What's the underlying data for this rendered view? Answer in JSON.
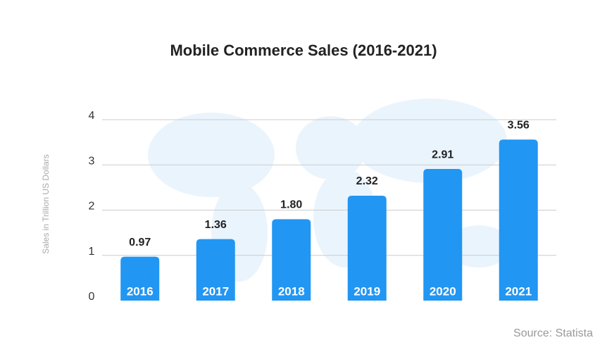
{
  "chart_data": {
    "type": "bar",
    "title": "Mobile Commerce Sales (2016-2021)",
    "y_label": "Sales in Trillion US Dollars",
    "source": "Source: Statista",
    "categories": [
      "2016",
      "2017",
      "2018",
      "2019",
      "2020",
      "2021"
    ],
    "values": [
      0.97,
      1.36,
      1.8,
      2.32,
      2.91,
      3.56
    ],
    "value_labels": [
      "0.97",
      "1.36",
      "1.80",
      "2.32",
      "2.91",
      "3.56"
    ],
    "color": "#2196f3",
    "ylim": [
      0,
      4
    ],
    "yticks": [
      0,
      1,
      2,
      3,
      4
    ],
    "grid": true
  }
}
